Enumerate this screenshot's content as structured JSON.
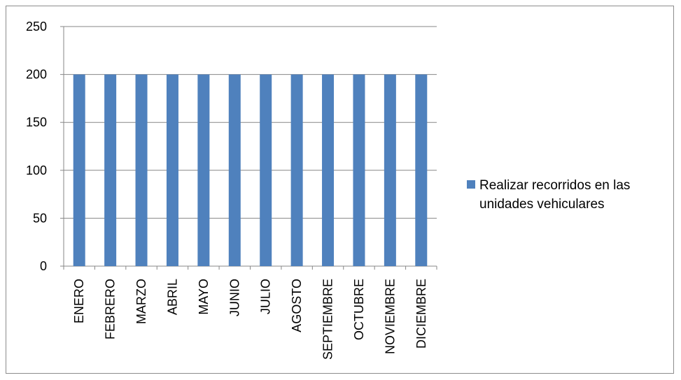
{
  "chart_data": {
    "type": "bar",
    "categories": [
      "ENERO",
      "FEBRERO",
      "MARZO",
      "ABRIL",
      "MAYO",
      "JUNIO",
      "JULIO",
      "AGOSTO",
      "SEPTIEMBRE",
      "OCTUBRE",
      "NOVIEMBRE",
      "DICIEMBRE"
    ],
    "series": [
      {
        "name": "Realizar recorridos en las unidades vehiculares",
        "values": [
          200,
          200,
          200,
          200,
          200,
          200,
          200,
          200,
          200,
          200,
          200,
          200
        ],
        "color": "#4f81bd"
      }
    ],
    "ylim": [
      0,
      250
    ],
    "yticks": [
      0,
      50,
      100,
      150,
      200,
      250
    ],
    "grid": true,
    "legend": "right",
    "legend_lines": [
      "Realizar recorridos en las",
      "unidades vehiculares"
    ],
    "title": "",
    "xlabel": "",
    "ylabel": ""
  }
}
